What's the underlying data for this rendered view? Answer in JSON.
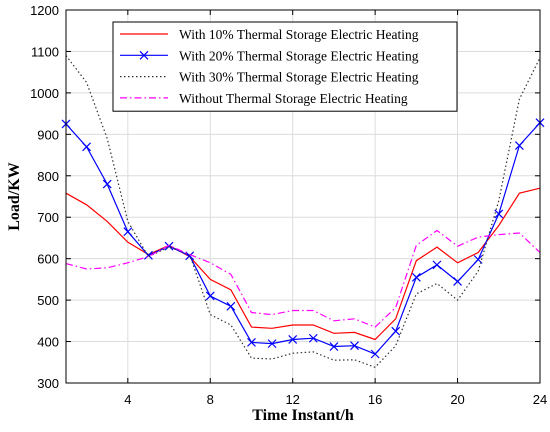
{
  "chart_data": {
    "type": "line",
    "title": "",
    "xlabel": "Time Instant/h",
    "ylabel": "Load/KW",
    "xlim": [
      1,
      24
    ],
    "ylim": [
      300,
      1200
    ],
    "xticks": [
      4,
      8,
      12,
      16,
      20,
      24
    ],
    "yticks": [
      300,
      400,
      500,
      600,
      700,
      800,
      900,
      1000,
      1100,
      1200
    ],
    "grid": true,
    "legend_position": "top-center",
    "x": [
      1,
      2,
      3,
      4,
      5,
      6,
      7,
      8,
      9,
      10,
      11,
      12,
      13,
      14,
      15,
      16,
      17,
      18,
      19,
      20,
      21,
      22,
      23,
      24
    ],
    "series": [
      {
        "name": "With 10% Thermal Storage Electric Heating",
        "color": "#ff0000",
        "style": "solid",
        "marker": "none",
        "values": [
          758,
          730,
          690,
          640,
          610,
          632,
          605,
          550,
          525,
          435,
          432,
          440,
          440,
          420,
          422,
          405,
          455,
          595,
          628,
          590,
          615,
          680,
          758,
          770
        ]
      },
      {
        "name": "With 20% Thermal Storage Electric Heating",
        "color": "#0000ff",
        "style": "solid",
        "marker": "x",
        "values": [
          925,
          870,
          780,
          665,
          608,
          630,
          607,
          510,
          485,
          398,
          395,
          405,
          408,
          388,
          390,
          370,
          425,
          555,
          585,
          545,
          598,
          708,
          873,
          928
        ]
      },
      {
        "name": "With 30% Thermal Storage Electric Heating",
        "color": "#333333",
        "style": "dotted",
        "marker": "none",
        "values": [
          1090,
          1025,
          890,
          690,
          605,
          628,
          610,
          465,
          440,
          360,
          358,
          372,
          375,
          355,
          356,
          338,
          390,
          515,
          540,
          500,
          570,
          740,
          985,
          1085
        ]
      },
      {
        "name": "Without Thermal Storage Electric Heating",
        "color": "#ff00ff",
        "style": "dashdot",
        "marker": "none",
        "values": [
          588,
          575,
          578,
          590,
          605,
          632,
          610,
          590,
          562,
          470,
          465,
          475,
          475,
          450,
          455,
          435,
          482,
          632,
          668,
          630,
          652,
          658,
          662,
          615
        ]
      }
    ]
  }
}
